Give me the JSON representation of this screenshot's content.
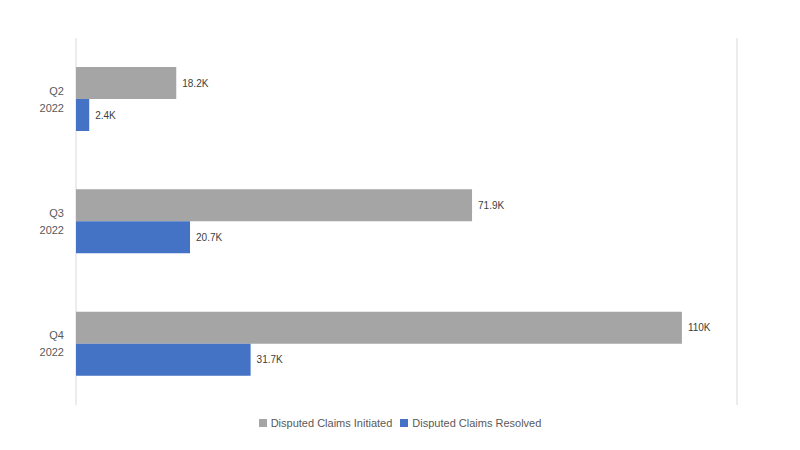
{
  "chart_data": {
    "type": "bar",
    "orientation": "horizontal",
    "categories": [
      "Q2 2022",
      "Q3 2022",
      "Q4 2022"
    ],
    "series": [
      {
        "name": "Disputed Claims Initiated",
        "color": "#a5a5a5",
        "values": [
          18.2,
          71.9,
          110
        ],
        "value_labels": [
          "18.2K",
          "71.9K",
          "110K"
        ]
      },
      {
        "name": "Disputed Claims Resolved",
        "color": "#4472c4",
        "values": [
          2.4,
          20.7,
          31.7
        ],
        "value_labels": [
          "2.4K",
          "20.7K",
          "31.7K"
        ]
      }
    ],
    "xlim": [
      0,
      120
    ],
    "xticks": [
      0,
      20,
      40,
      60,
      80,
      100,
      120
    ],
    "grid": true,
    "data_labels": true,
    "tick_labels": "y",
    "legend": "bottom"
  }
}
